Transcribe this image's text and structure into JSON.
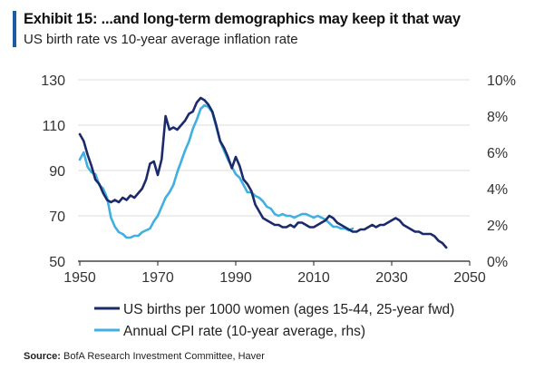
{
  "header": {
    "title": "Exhibit 15: ...and long-term demographics may keep it that way",
    "subtitle": "US birth rate vs 10-year average inflation rate"
  },
  "source": {
    "label": "Source:",
    "text": "BofA Research Investment Committee, Haver"
  },
  "colors": {
    "accent": "#1f5aa6",
    "births": "#1b2a6b",
    "cpi": "#3fb0e0",
    "grid": "#dcdcdc",
    "axis": "#222222"
  },
  "chart_data": {
    "type": "line",
    "title": "Exhibit 15: ...and long-term demographics may keep it that way",
    "subtitle": "US birth rate vs 10-year average inflation rate",
    "grid": "horizontal",
    "legend_placement": "bottom-center",
    "x_axis": {
      "min": 1950,
      "max": 2050,
      "ticks": [
        1950,
        1970,
        1990,
        2010,
        2030,
        2050
      ],
      "tick_labels": [
        "1950",
        "1970",
        "1990",
        "2010",
        "2030",
        "2050"
      ]
    },
    "y_left": {
      "min": 50,
      "max": 130,
      "ticks": [
        50,
        70,
        90,
        110,
        130
      ],
      "tick_labels": [
        "50",
        "70",
        "90",
        "110",
        "130"
      ]
    },
    "y_right": {
      "min": 0,
      "max": 10,
      "ticks": [
        0,
        2,
        4,
        6,
        8,
        10
      ],
      "tick_labels": [
        "0%",
        "2%",
        "4%",
        "6%",
        "8%",
        "10%"
      ]
    },
    "series": [
      {
        "name": "US births per 1000 women (ages 15-44, 25-year fwd)",
        "axis": "left",
        "color": "#1b2a6b",
        "x": [
          1950,
          1951,
          1952,
          1953,
          1954,
          1955,
          1956,
          1957,
          1958,
          1959,
          1960,
          1961,
          1962,
          1963,
          1964,
          1965,
          1966,
          1967,
          1968,
          1969,
          1970,
          1971,
          1972,
          1973,
          1974,
          1975,
          1976,
          1977,
          1978,
          1979,
          1980,
          1981,
          1982,
          1983,
          1984,
          1985,
          1986,
          1987,
          1988,
          1989,
          1990,
          1991,
          1992,
          1993,
          1994,
          1995,
          1996,
          1997,
          1998,
          1999,
          2000,
          2001,
          2002,
          2003,
          2004,
          2005,
          2006,
          2007,
          2008,
          2009,
          2010,
          2011,
          2012,
          2013,
          2014,
          2015,
          2016,
          2017,
          2018,
          2019,
          2020,
          2021,
          2022,
          2023,
          2024,
          2025,
          2026,
          2027,
          2028,
          2029,
          2030,
          2031,
          2032,
          2033,
          2034,
          2035,
          2036,
          2037,
          2038,
          2039,
          2040,
          2041,
          2042,
          2043,
          2044
        ],
        "y": [
          106,
          103,
          97,
          92,
          86,
          84,
          80,
          77,
          76,
          77,
          76,
          78,
          77,
          79,
          78,
          80,
          82,
          86,
          93,
          94,
          88,
          95,
          114,
          108,
          109,
          108,
          110,
          112,
          115,
          116,
          120,
          122,
          121,
          119,
          116,
          110,
          103,
          100,
          96,
          91,
          96,
          92,
          86,
          84,
          81,
          75,
          72,
          69,
          68,
          67,
          66,
          66,
          65,
          65,
          66,
          65,
          67,
          67,
          66,
          65,
          65,
          66,
          67,
          68,
          70,
          69,
          67,
          66,
          65,
          64,
          63,
          63,
          64,
          64,
          65,
          66,
          65,
          66,
          66,
          67,
          68,
          69,
          68,
          66,
          65,
          64,
          63,
          63,
          62,
          62,
          62,
          61,
          59,
          58,
          56
        ]
      },
      {
        "name": "Annual CPI rate (10-year average, rhs)",
        "axis": "right",
        "color": "#3fb0e0",
        "x": [
          1950,
          1951,
          1952,
          1953,
          1954,
          1955,
          1956,
          1957,
          1958,
          1959,
          1960,
          1961,
          1962,
          1963,
          1964,
          1965,
          1966,
          1967,
          1968,
          1969,
          1970,
          1971,
          1972,
          1973,
          1974,
          1975,
          1976,
          1977,
          1978,
          1979,
          1980,
          1981,
          1982,
          1983,
          1984,
          1985,
          1986,
          1987,
          1988,
          1989,
          1990,
          1991,
          1992,
          1993,
          1994,
          1995,
          1996,
          1997,
          1998,
          1999,
          2000,
          2001,
          2002,
          2003,
          2004,
          2005,
          2006,
          2007,
          2008,
          2009,
          2010,
          2011,
          2012,
          2013,
          2014,
          2015,
          2016,
          2017,
          2018,
          2019,
          2020
        ],
        "y": [
          5.6,
          6.0,
          5.2,
          4.9,
          4.8,
          4.2,
          4.0,
          3.5,
          2.4,
          1.9,
          1.6,
          1.5,
          1.3,
          1.3,
          1.4,
          1.4,
          1.6,
          1.7,
          1.8,
          2.2,
          2.5,
          3.0,
          3.5,
          3.8,
          4.2,
          4.9,
          5.5,
          6.1,
          6.6,
          7.3,
          7.8,
          8.4,
          8.6,
          8.5,
          8.2,
          7.4,
          6.6,
          6.1,
          5.6,
          5.2,
          4.8,
          4.6,
          4.2,
          3.8,
          3.8,
          3.6,
          3.5,
          3.3,
          3.0,
          2.9,
          2.6,
          2.5,
          2.6,
          2.5,
          2.5,
          2.4,
          2.5,
          2.6,
          2.6,
          2.5,
          2.4,
          2.5,
          2.4,
          2.3,
          2.1,
          1.9,
          1.9,
          1.8,
          1.8,
          1.7,
          1.8
        ]
      }
    ]
  }
}
